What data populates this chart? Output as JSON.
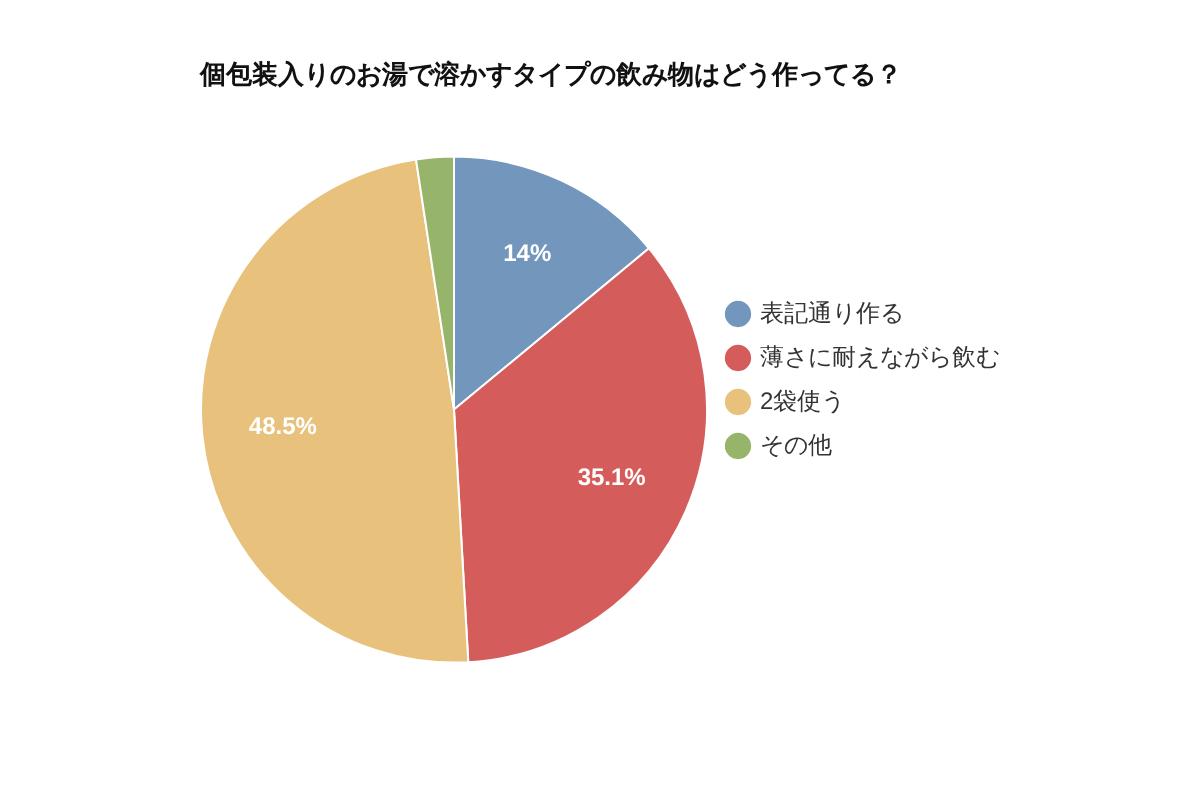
{
  "chart_data": {
    "type": "pie",
    "title": "個包装入りのお湯で溶かすタイプの飲み物はどう作ってる？",
    "categories": [
      "表記通り作る",
      "薄さに耐えながら飲む",
      "2袋使う",
      "その他"
    ],
    "values": [
      14,
      35.1,
      48.5,
      2.4
    ],
    "colors": [
      "#7396bd",
      "#d45d5b",
      "#e8c27c",
      "#97b56a"
    ],
    "value_labels": [
      "14%",
      "35.1%",
      "48.5%",
      null
    ],
    "legend": "right"
  }
}
